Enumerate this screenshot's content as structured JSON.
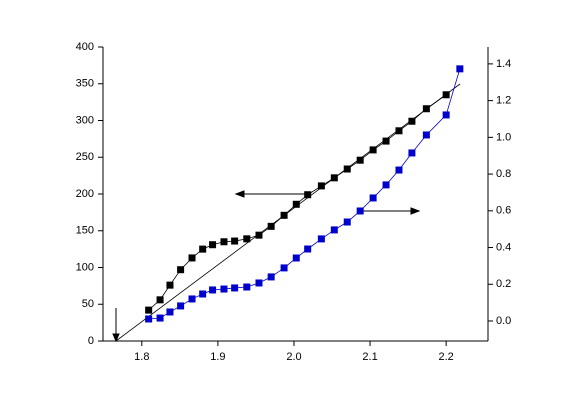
{
  "chart_data": {
    "type": "line",
    "xlim": [
      1.749,
      2.255
    ],
    "xticks": [
      1.8,
      1.9,
      {
        "value": 2,
        "label": "2.0"
      },
      2.1,
      2.2
    ],
    "ylim": [
      0,
      400
    ],
    "yticks": [
      0,
      50,
      100,
      150,
      200,
      250,
      300,
      350,
      400
    ],
    "y2lim": [
      -0.109,
      1.492
    ],
    "y2ticks": [
      {
        "value": 0,
        "label": "0.0"
      },
      0.2,
      0.4,
      0.6,
      0.8,
      {
        "value": 1,
        "label": "1.0"
      },
      1.2,
      1.4
    ],
    "series": [
      {
        "color": "#000000",
        "x": [
          1.809,
          1.824,
          1.837,
          1.851,
          1.866,
          1.88,
          1.893,
          1.908,
          1.922,
          1.938,
          1.954,
          1.97,
          1.987,
          2.003,
          2.018,
          2.036,
          2.053,
          2.07,
          2.087,
          2.104,
          2.121,
          2.138,
          2.155,
          2.174,
          2.2
        ],
        "values": [
          42,
          56,
          76,
          97,
          113,
          125,
          131,
          135,
          136,
          139,
          144,
          156,
          171,
          186,
          199,
          211,
          222,
          234,
          246,
          260,
          272,
          286,
          299,
          316,
          335
        ]
      },
      {
        "color": "#0000cc",
        "axis": "y2",
        "x": [
          1.809,
          1.824,
          1.837,
          1.851,
          1.866,
          1.88,
          1.893,
          1.908,
          1.922,
          1.938,
          1.954,
          1.97,
          1.987,
          2.003,
          2.018,
          2.036,
          2.053,
          2.07,
          2.087,
          2.104,
          2.121,
          2.138,
          2.155,
          2.174,
          2.2,
          2.218
        ],
        "values": [
          0.011,
          0.016,
          0.049,
          0.082,
          0.12,
          0.147,
          0.169,
          0.174,
          0.18,
          0.185,
          0.207,
          0.24,
          0.289,
          0.343,
          0.392,
          0.447,
          0.496,
          0.539,
          0.599,
          0.67,
          0.741,
          0.822,
          0.915,
          1.013,
          1.122,
          1.373
        ]
      }
    ]
  }
}
